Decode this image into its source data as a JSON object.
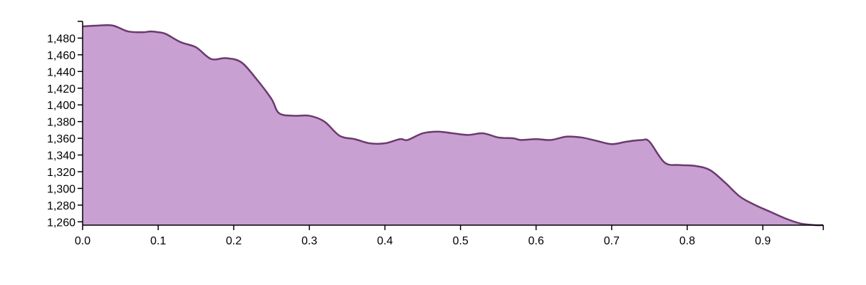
{
  "chart_data": {
    "type": "area",
    "title": "",
    "xlabel": "",
    "ylabel": "",
    "xlim": [
      0,
      0.98
    ],
    "ylim": [
      1256,
      1500
    ],
    "x_ticks": [
      0.0,
      0.1,
      0.2,
      0.3,
      0.4,
      0.5,
      0.6,
      0.7,
      0.8,
      0.9
    ],
    "x_tick_labels": [
      "0.0",
      "0.1",
      "0.2",
      "0.3",
      "0.4",
      "0.5",
      "0.6",
      "0.7",
      "0.8",
      "0.9"
    ],
    "y_ticks": [
      1260,
      1280,
      1300,
      1320,
      1340,
      1360,
      1380,
      1400,
      1420,
      1440,
      1460,
      1480
    ],
    "y_tick_labels": [
      "1,260",
      "1,280",
      "1,300",
      "1,320",
      "1,340",
      "1,360",
      "1,380",
      "1,400",
      "1,420",
      "1,440",
      "1,460",
      "1,480"
    ],
    "grid": false,
    "colors": {
      "fill": "#c9a0d2",
      "stroke": "#6b3a6e"
    },
    "series": [
      {
        "x": [
          0.0,
          0.02,
          0.04,
          0.06,
          0.08,
          0.09,
          0.1,
          0.11,
          0.13,
          0.15,
          0.17,
          0.19,
          0.21,
          0.23,
          0.25,
          0.26,
          0.28,
          0.3,
          0.32,
          0.34,
          0.36,
          0.38,
          0.4,
          0.42,
          0.43,
          0.45,
          0.47,
          0.49,
          0.51,
          0.53,
          0.55,
          0.57,
          0.58,
          0.6,
          0.62,
          0.64,
          0.66,
          0.68,
          0.7,
          0.72,
          0.74,
          0.75,
          0.77,
          0.79,
          0.81,
          0.83,
          0.85,
          0.87,
          0.89,
          0.91,
          0.93,
          0.95,
          0.97,
          0.98
        ],
        "values": [
          1494,
          1495,
          1495,
          1488,
          1487,
          1488,
          1487,
          1485,
          1475,
          1469,
          1455,
          1456,
          1451,
          1431,
          1407,
          1390,
          1387,
          1387,
          1380,
          1363,
          1359,
          1354,
          1354,
          1359,
          1358,
          1366,
          1368,
          1366,
          1364,
          1366,
          1361,
          1360,
          1358,
          1359,
          1358,
          1362,
          1361,
          1357,
          1353,
          1356,
          1358,
          1356,
          1331,
          1328,
          1327,
          1322,
          1307,
          1290,
          1280,
          1272,
          1264,
          1258,
          1256,
          1256
        ]
      }
    ]
  }
}
